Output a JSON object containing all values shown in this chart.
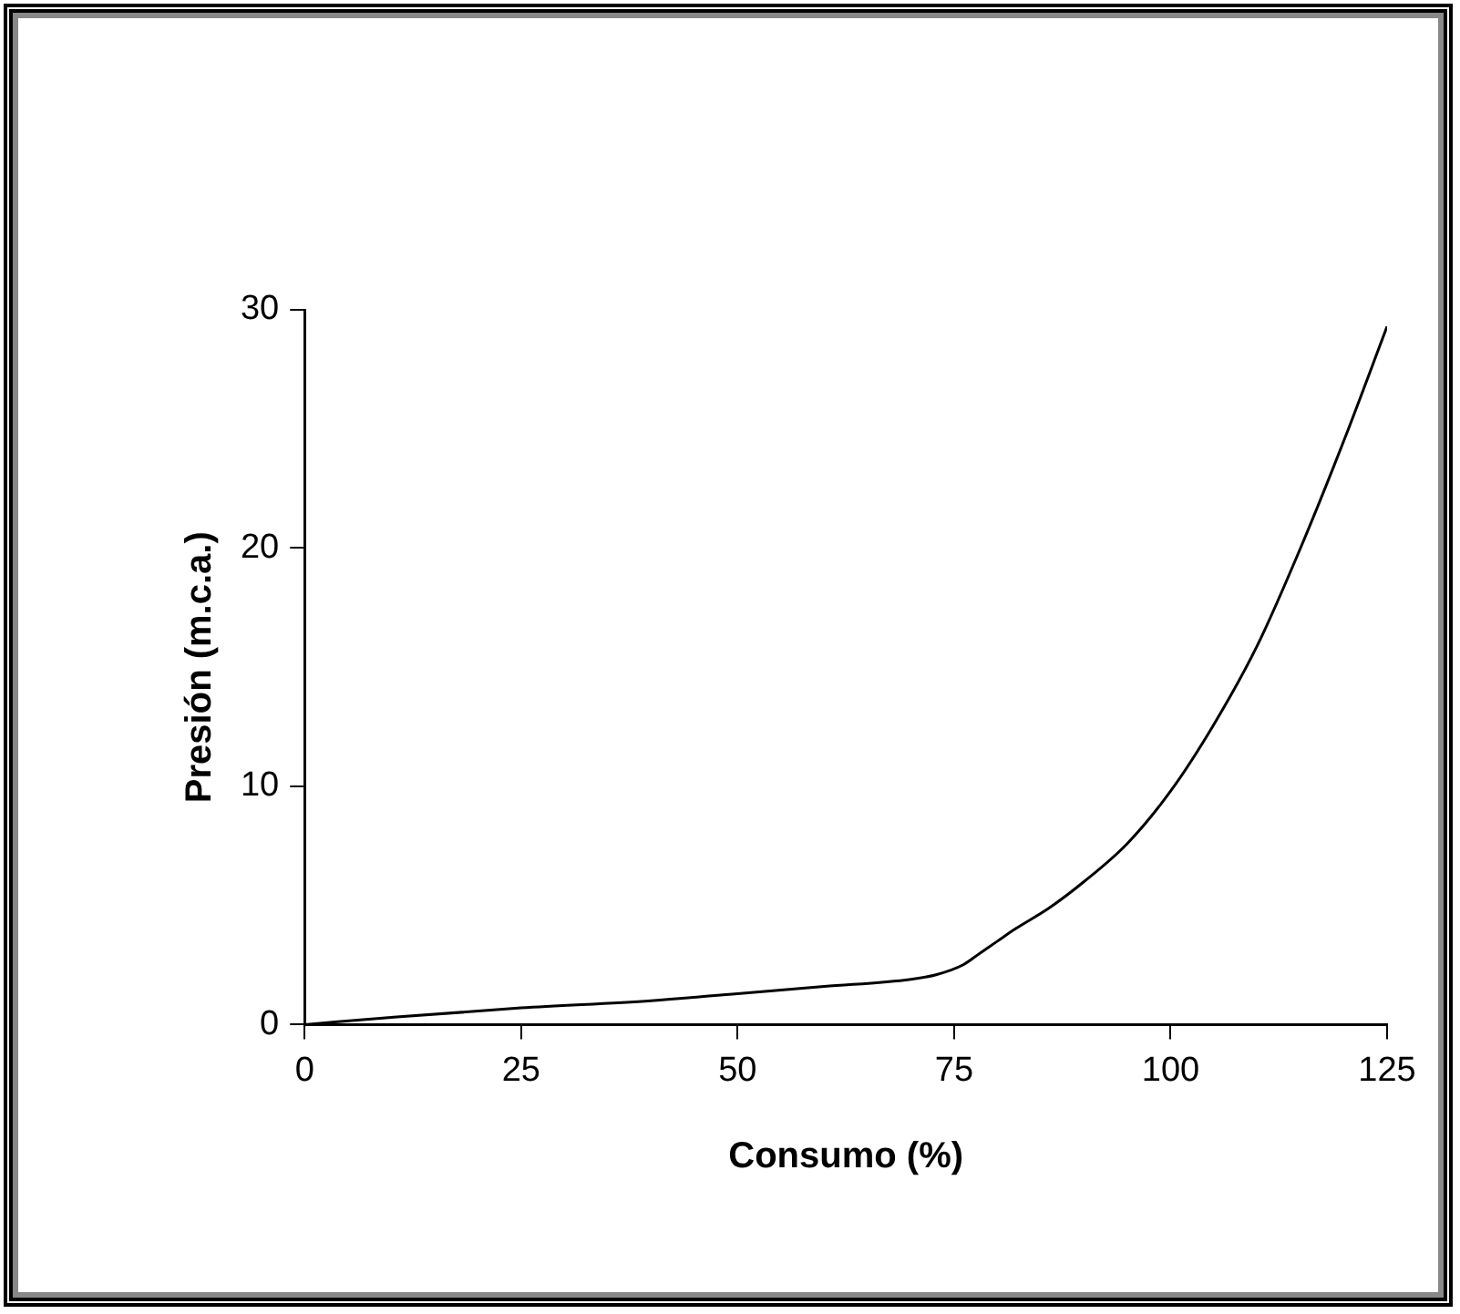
{
  "chart_data": {
    "type": "line",
    "xlabel": "Consumo (%)",
    "ylabel": "Presión (m.c.a.)",
    "x": [
      0,
      10,
      25,
      40,
      50,
      60,
      70,
      73,
      76,
      78,
      80,
      82,
      86,
      90,
      95,
      100,
      105,
      110,
      115,
      120,
      125
    ],
    "values": [
      0,
      0.3,
      0.7,
      1.0,
      1.3,
      1.6,
      1.9,
      2.1,
      2.5,
      3.0,
      3.5,
      4.0,
      4.9,
      6.0,
      7.6,
      9.8,
      12.6,
      15.9,
      20.0,
      24.5,
      29.3
    ],
    "color": "#000000",
    "xlim": [
      0,
      125
    ],
    "xticks": [
      0,
      25,
      50,
      75,
      100,
      125
    ],
    "ylim": [
      0,
      30
    ],
    "yticks": [
      0,
      10,
      20,
      30
    ],
    "grid": false,
    "legend": false,
    "marker": "none",
    "line_style": "solid"
  }
}
